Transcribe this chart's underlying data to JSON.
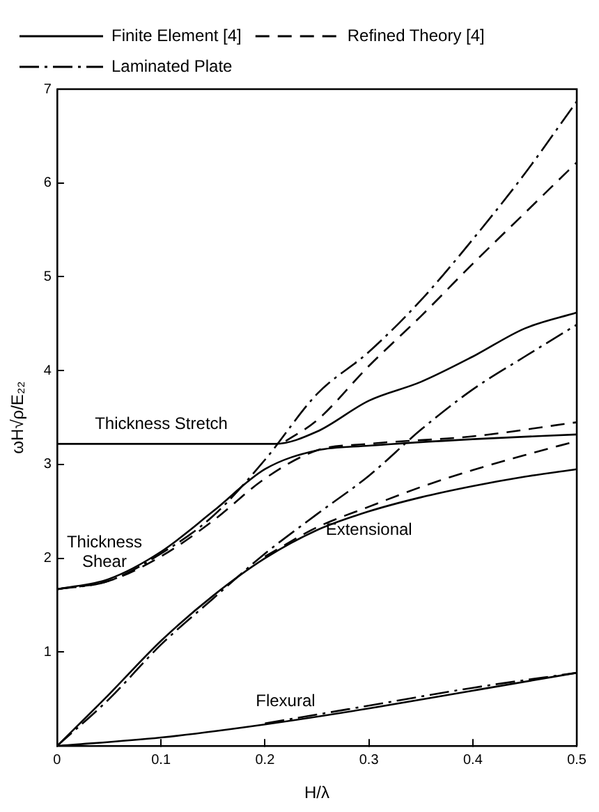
{
  "chart_data": {
    "type": "line",
    "xlabel": "H/λ",
    "ylabel": "ωH√ρ/E₂₂",
    "xlim": [
      0,
      0.5
    ],
    "ylim": [
      0,
      7
    ],
    "xticks": [
      0,
      0.1,
      0.2,
      0.3,
      0.4,
      0.5
    ],
    "yticks": [
      {
        "value": 0,
        "label": null
      },
      1,
      2,
      3,
      4,
      5,
      6,
      7
    ],
    "grid": false,
    "legend": "top left",
    "marker": "none",
    "series": [
      {
        "name": "Finite Element [4]",
        "color": "#000000",
        "line_style": "solid",
        "x": [
          0,
          0.1,
          0.2,
          0.3,
          0.4,
          0.5
        ],
        "values": [
          0,
          0.09,
          0.23,
          0.4,
          0.59,
          0.78
        ]
      },
      {
        "color": "#000000",
        "line_style": "solid",
        "x": [
          0,
          0.05,
          0.1,
          0.15,
          0.2,
          0.25,
          0.3,
          0.35,
          0.4,
          0.45,
          0.5
        ],
        "values": [
          0,
          0.55,
          1.12,
          1.6,
          2.0,
          2.3,
          2.5,
          2.65,
          2.77,
          2.87,
          2.95
        ]
      },
      {
        "color": "#000000",
        "line_style": "solid",
        "x": [
          0,
          0.05,
          0.1,
          0.15,
          0.2,
          0.25,
          0.3,
          0.4,
          0.5
        ],
        "values": [
          1.67,
          1.78,
          2.07,
          2.5,
          2.95,
          3.15,
          3.2,
          3.27,
          3.32
        ]
      },
      {
        "color": "#000000",
        "line_style": "solid",
        "x": [
          0,
          0.1,
          0.2,
          0.21,
          0.25,
          0.3,
          0.35,
          0.4,
          0.45,
          0.5
        ],
        "values": [
          3.22,
          3.22,
          3.22,
          3.22,
          3.35,
          3.68,
          3.88,
          4.15,
          4.45,
          4.62
        ]
      },
      {
        "name": "Refined Theory [4]",
        "color": "#000000",
        "line_style": "dashed",
        "x": [
          0,
          0.05,
          0.1,
          0.15,
          0.2,
          0.25,
          0.3,
          0.4,
          0.5
        ],
        "values": [
          1.67,
          1.76,
          2.02,
          2.4,
          2.85,
          3.15,
          3.22,
          3.3,
          3.45
        ]
      },
      {
        "color": "#000000",
        "line_style": "dashed",
        "x": [
          0.22,
          0.25,
          0.3,
          0.35,
          0.4,
          0.45,
          0.5
        ],
        "values": [
          3.25,
          3.47,
          4.05,
          4.58,
          5.14,
          5.68,
          6.22
        ]
      },
      {
        "color": "#000000",
        "line_style": "dashed",
        "x": [
          0.2,
          0.25,
          0.3,
          0.35,
          0.4,
          0.45,
          0.5
        ],
        "values": [
          2.02,
          2.33,
          2.55,
          2.76,
          2.94,
          3.1,
          3.25
        ]
      },
      {
        "name": "Laminated Plate",
        "color": "#000000",
        "line_style": "dashdot",
        "x": [
          0,
          0.05,
          0.1,
          0.15,
          0.2,
          0.25,
          0.3,
          0.35,
          0.4,
          0.45,
          0.5
        ],
        "values": [
          0,
          0.5,
          1.08,
          1.57,
          2.05,
          2.47,
          2.88,
          3.37,
          3.8,
          4.15,
          4.49
        ]
      },
      {
        "color": "#000000",
        "line_style": "dashdot",
        "x": [
          0,
          0.05,
          0.1,
          0.15,
          0.2,
          0.25,
          0.3,
          0.35,
          0.4,
          0.45,
          0.5
        ],
        "values": [
          1.67,
          1.76,
          2.05,
          2.45,
          3.05,
          3.75,
          4.2,
          4.75,
          5.4,
          6.1,
          6.87
        ]
      },
      {
        "color": "#000000",
        "line_style": "dashdot",
        "x": [
          0.2,
          0.3,
          0.4,
          0.5
        ],
        "values": [
          0.24,
          0.43,
          0.62,
          0.78
        ]
      }
    ],
    "annotations": [
      {
        "text": "Thickness Stretch",
        "x": 0.1,
        "y": 3.22
      },
      {
        "text": "Thickness Shear",
        "x": 0.04,
        "y": 1.75
      },
      {
        "text": "Extensional",
        "x": 0.3,
        "y": 2.5
      },
      {
        "text": "Flexural",
        "x": 0.22,
        "y": 0.26
      }
    ]
  }
}
